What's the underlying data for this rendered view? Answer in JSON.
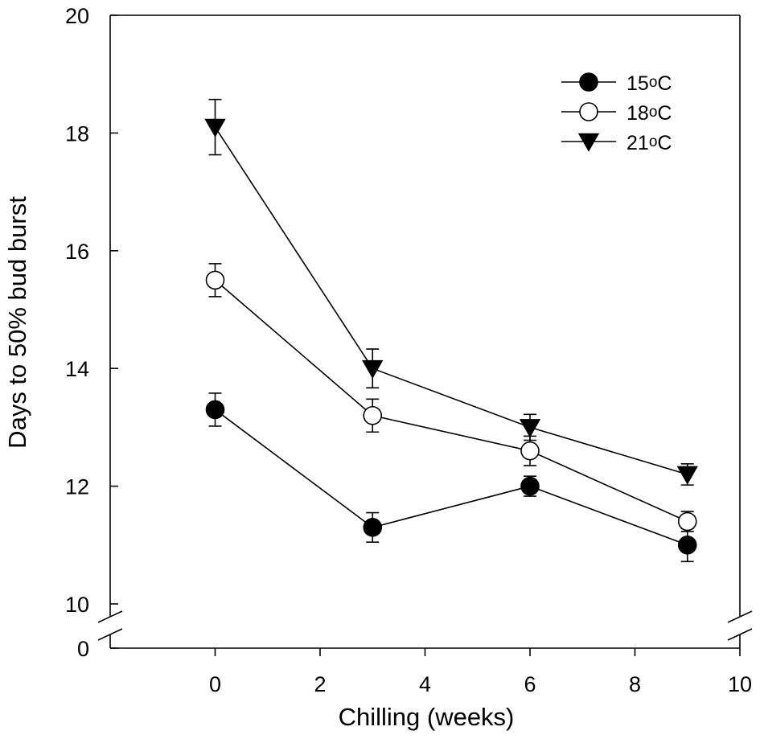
{
  "chart_data": {
    "type": "line",
    "xlabel": "Chilling (weeks)",
    "ylabel": "Days to 50% bud burst",
    "xlim": [
      -2,
      10
    ],
    "ylim": [
      10,
      20
    ],
    "axis_break": {
      "lower_value": 0,
      "break_between": [
        0,
        10
      ]
    },
    "x_ticks": [
      0,
      2,
      4,
      6,
      8,
      10
    ],
    "y_ticks": [
      0,
      10,
      12,
      14,
      16,
      18,
      20
    ],
    "x": [
      0,
      3,
      6,
      9
    ],
    "legend_position": "top-right",
    "series": [
      {
        "name": "15",
        "unit": "oC",
        "marker": "circle-filled",
        "values": [
          13.3,
          11.3,
          12.0,
          11.0
        ],
        "errors": [
          0.28,
          0.25,
          0.17,
          0.28
        ]
      },
      {
        "name": "18",
        "unit": "oC",
        "marker": "circle-open",
        "values": [
          15.5,
          13.2,
          12.6,
          11.4
        ],
        "errors": [
          0.28,
          0.28,
          0.25,
          0.17
        ]
      },
      {
        "name": "21",
        "unit": "oC",
        "marker": "triangle-down-filled",
        "values": [
          18.1,
          14.0,
          13.0,
          12.2
        ],
        "errors": [
          0.47,
          0.33,
          0.22,
          0.18
        ]
      }
    ]
  }
}
